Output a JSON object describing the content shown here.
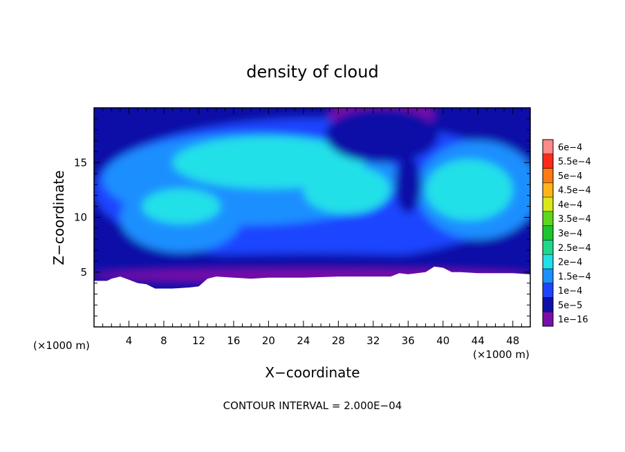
{
  "chart_data": {
    "type": "heatmap",
    "title": "density of cloud",
    "xlabel": "X−coordinate",
    "ylabel": "Z−coordinate",
    "x_unit_label_left": "(×1000 m)",
    "x_unit_label_right": "(×1000 m)",
    "footer": "CONTOUR INTERVAL = 2.000E−04",
    "xlim": [
      0,
      50
    ],
    "ylim": [
      0,
      20
    ],
    "x_ticks": [
      4,
      8,
      12,
      16,
      20,
      24,
      28,
      32,
      36,
      40,
      44,
      48
    ],
    "y_ticks": [
      5,
      10,
      15
    ],
    "legend": {
      "placement": "right",
      "labels": [
        "1e−16",
        "5e−5",
        "1e−4",
        "1.5e−4",
        "2e−4",
        "2.5e−4",
        "3e−4",
        "3.5e−4",
        "4e−4",
        "4.5e−4",
        "5e−4",
        "5.5e−4",
        "6e−4"
      ],
      "colors": [
        "#7a0fa8",
        "#1010a8",
        "#1f44ff",
        "#1e8fff",
        "#22e0e8",
        "#1fd88a",
        "#1ec430",
        "#5ed61e",
        "#d8e81a",
        "#ffb51a",
        "#ff7a12",
        "#ff2a1a",
        "#ff8a8a"
      ]
    },
    "terrain_top_km": [
      [
        0,
        4.2
      ],
      [
        1.5,
        4.2
      ],
      [
        2,
        4.4
      ],
      [
        3,
        4.6
      ],
      [
        4,
        4.3
      ],
      [
        5,
        4.0
      ],
      [
        6,
        3.9
      ],
      [
        7,
        3.5
      ],
      [
        9,
        3.5
      ],
      [
        11,
        3.6
      ],
      [
        12,
        3.7
      ],
      [
        13,
        4.4
      ],
      [
        14,
        4.6
      ],
      [
        16,
        4.5
      ],
      [
        18,
        4.4
      ],
      [
        20,
        4.5
      ],
      [
        24,
        4.5
      ],
      [
        28,
        4.6
      ],
      [
        32,
        4.6
      ],
      [
        34,
        4.6
      ],
      [
        35,
        4.9
      ],
      [
        36,
        4.8
      ],
      [
        38,
        5.0
      ],
      [
        39,
        5.5
      ],
      [
        40,
        5.4
      ],
      [
        41,
        5.0
      ],
      [
        42,
        5.0
      ],
      [
        44,
        4.9
      ],
      [
        46,
        4.9
      ],
      [
        48,
        4.9
      ],
      [
        50,
        4.8
      ]
    ],
    "field_regions": [
      {
        "level": 1,
        "shape": "base",
        "cx": 25,
        "cy": 12,
        "rx": 25,
        "ry": 8
      },
      {
        "level": 2,
        "shape": "blob",
        "cx": 25,
        "cy": 12.5,
        "rx": 25,
        "ry": 6.5
      },
      {
        "level": 3,
        "shape": "blob",
        "cx": 18,
        "cy": 13.5,
        "rx": 17,
        "ry": 4.2
      },
      {
        "level": 3,
        "shape": "blob",
        "cx": 44,
        "cy": 12.5,
        "rx": 7,
        "ry": 4.5
      },
      {
        "level": 3,
        "shape": "blob",
        "cx": 10,
        "cy": 10,
        "rx": 7,
        "ry": 3.2
      },
      {
        "level": 4,
        "shape": "blob",
        "cx": 20,
        "cy": 15,
        "rx": 11,
        "ry": 2.4
      },
      {
        "level": 4,
        "shape": "blob",
        "cx": 29,
        "cy": 12.5,
        "rx": 5,
        "ry": 2.2
      },
      {
        "level": 4,
        "shape": "blob",
        "cx": 43,
        "cy": 12.5,
        "rx": 5,
        "ry": 2.8
      },
      {
        "level": 4,
        "shape": "blob",
        "cx": 10,
        "cy": 11,
        "rx": 4.5,
        "ry": 1.6
      },
      {
        "level": 0,
        "shape": "blob",
        "cx": 33,
        "cy": 19.3,
        "rx": 6,
        "ry": 1.6
      },
      {
        "level": 1,
        "shape": "blob",
        "cx": 33,
        "cy": 17.5,
        "rx": 6.5,
        "ry": 2.5
      },
      {
        "level": 1,
        "shape": "blob",
        "cx": 36,
        "cy": 13,
        "rx": 1.5,
        "ry": 2.6
      },
      {
        "level": 1,
        "shape": "blob",
        "cx": 25,
        "cy": 5.6,
        "rx": 25,
        "ry": 1.1
      },
      {
        "level": 0,
        "shape": "blob",
        "cx": 25,
        "cy": 4.7,
        "rx": 25,
        "ry": 0.55
      }
    ]
  }
}
